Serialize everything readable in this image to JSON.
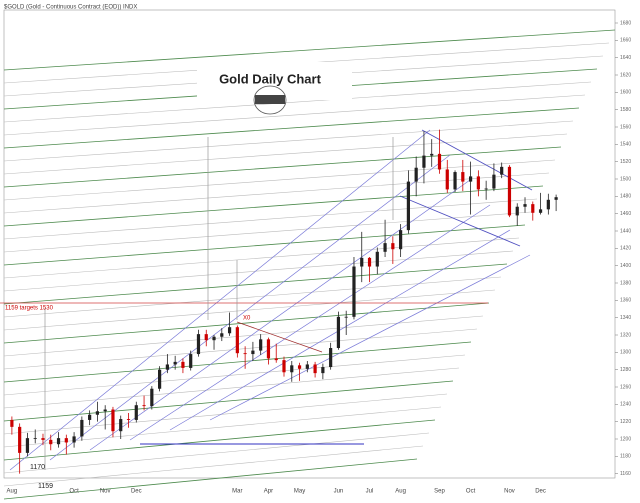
{
  "chart_data": {
    "type": "candlestick",
    "header": "$GOLD (Gold - Continuous Contract (EOD)) INDX",
    "title": "Gold Daily Chart",
    "annotations": [
      "1170",
      "1159",
      "1159 targets 1530",
      "X0"
    ],
    "categories": [
      "Aug",
      null,
      null,
      null,
      null,
      null,
      null,
      null,
      "Oct",
      null,
      null,
      null,
      "Nov",
      null,
      null,
      null,
      "Dec",
      null,
      null,
      null,
      null,
      null,
      null,
      null,
      null,
      null,
      null,
      null,
      null,
      "Mar",
      null,
      null,
      null,
      "Apr",
      null,
      null,
      null,
      "May",
      null,
      null,
      null,
      null,
      "Jun",
      null,
      null,
      null,
      "Jul",
      null,
      null,
      null,
      "Aug",
      null,
      null,
      null,
      null,
      "Sep",
      null,
      null,
      null,
      "Oct",
      null,
      null,
      null,
      null,
      "Nov",
      null,
      null,
      null,
      "Dec",
      null,
      null
    ],
    "open": [
      1222,
      1214,
      1184,
      1201,
      1201,
      1199,
      1194,
      1201,
      1196,
      1203,
      1222,
      1228,
      1232,
      1234,
      1209,
      1223,
      1222,
      1239,
      1238,
      1258,
      1280,
      1286,
      1289,
      1282,
      1298,
      1321,
      1314,
      1318,
      1322,
      1329,
      1299,
      1298,
      1302,
      1315,
      1293,
      1291,
      1277,
      1285,
      1281,
      1286,
      1276,
      1283,
      1305,
      1341,
      1341,
      1399,
      1409,
      1399,
      1416,
      1426,
      1419,
      1441,
      1497,
      1513,
      1527,
      1529,
      1511,
      1488,
      1508,
      1497,
      1503,
      1488,
      1489,
      1505,
      1514,
      1458,
      1468,
      1471,
      1461,
      1465,
      1476
    ],
    "high": [
      1226,
      1218,
      1207,
      1211,
      1206,
      1205,
      1208,
      1205,
      1208,
      1226,
      1233,
      1243,
      1239,
      1237,
      1227,
      1230,
      1243,
      1250,
      1261,
      1284,
      1298,
      1296,
      1293,
      1302,
      1326,
      1326,
      1320,
      1328,
      1346,
      1331,
      1307,
      1312,
      1321,
      1317,
      1310,
      1295,
      1290,
      1288,
      1290,
      1289,
      1287,
      1311,
      1347,
      1348,
      1410,
      1439,
      1410,
      1421,
      1453,
      1434,
      1448,
      1510,
      1526,
      1555,
      1546,
      1557,
      1522,
      1510,
      1522,
      1520,
      1510,
      1498,
      1518,
      1519,
      1516,
      1472,
      1479,
      1474,
      1484,
      1483,
      1482
    ],
    "low": [
      1205,
      1160,
      1180,
      1195,
      1193,
      1187,
      1190,
      1182,
      1190,
      1198,
      1216,
      1220,
      1211,
      1202,
      1200,
      1213,
      1219,
      1233,
      1234,
      1255,
      1276,
      1280,
      1276,
      1279,
      1295,
      1307,
      1303,
      1313,
      1319,
      1294,
      1281,
      1290,
      1297,
      1286,
      1288,
      1272,
      1266,
      1267,
      1277,
      1271,
      1269,
      1280,
      1303,
      1320,
      1338,
      1381,
      1381,
      1390,
      1410,
      1402,
      1410,
      1437,
      1480,
      1495,
      1514,
      1506,
      1484,
      1485,
      1486,
      1459,
      1480,
      1476,
      1486,
      1501,
      1456,
      1446,
      1461,
      1452,
      1459,
      1459,
      1463
    ],
    "close": [
      1214,
      1184,
      1201,
      1201,
      1199,
      1194,
      1201,
      1196,
      1203,
      1222,
      1228,
      1232,
      1234,
      1209,
      1223,
      1222,
      1239,
      1238,
      1258,
      1280,
      1286,
      1289,
      1282,
      1298,
      1321,
      1314,
      1318,
      1322,
      1329,
      1299,
      1298,
      1302,
      1315,
      1293,
      1291,
      1277,
      1285,
      1281,
      1286,
      1276,
      1283,
      1305,
      1341,
      1341,
      1399,
      1409,
      1399,
      1416,
      1426,
      1419,
      1441,
      1497,
      1513,
      1527,
      1529,
      1511,
      1488,
      1508,
      1497,
      1503,
      1488,
      1489,
      1505,
      1514,
      1458,
      1468,
      1471,
      1461,
      1465,
      1476,
      1479
    ],
    "up_color": "#222222",
    "down_color": "#cc0000",
    "ylim": [
      1155,
      1695
    ],
    "yticks": [
      1160,
      1180,
      1200,
      1220,
      1240,
      1260,
      1280,
      1300,
      1320,
      1340,
      1360,
      1380,
      1400,
      1420,
      1440,
      1460,
      1480,
      1500,
      1520,
      1540,
      1560,
      1580,
      1600,
      1620,
      1640,
      1660,
      1680
    ]
  }
}
